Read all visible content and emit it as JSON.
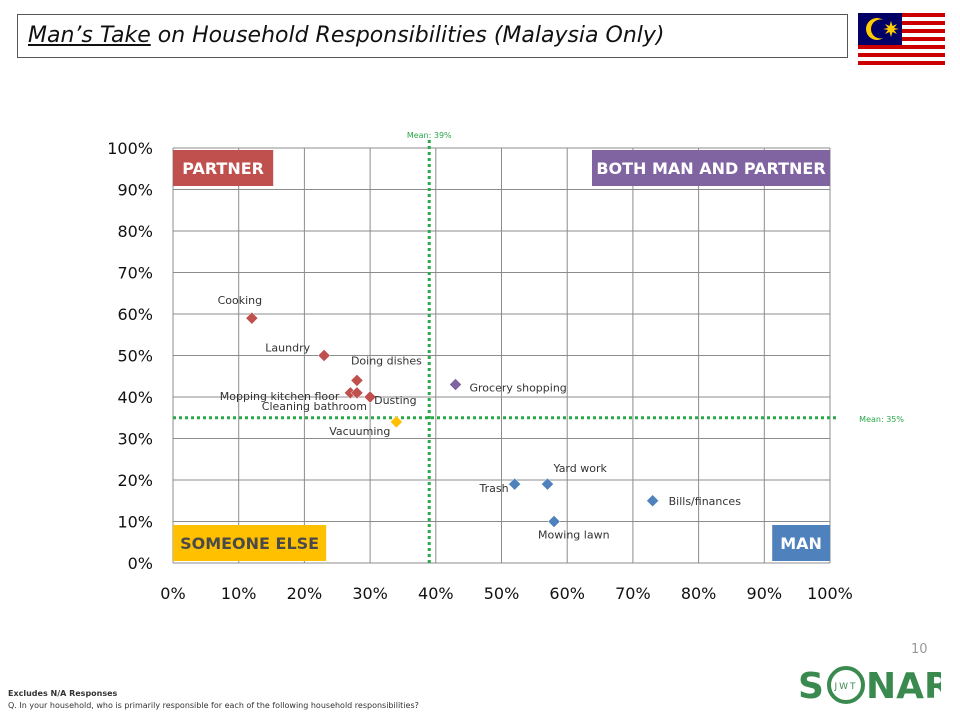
{
  "header": {
    "title_underlined": "Man’s Take",
    "title_rest": " on Household Responsibilities (Malaysia Only)",
    "flag_icon": "malaysia-flag-icon"
  },
  "page_number": "10",
  "footer": {
    "label": "Excludes N/A Responses",
    "question": "Q. In your household, who is primarily responsible for each of the following household responsibilities?"
  },
  "logo": {
    "main": "SONAR",
    "sub": "JWT",
    "color": "#3a8a50"
  },
  "chart_data": {
    "type": "scatter",
    "xlim": [
      0,
      100
    ],
    "ylim": [
      0,
      100
    ],
    "x_ticks": [
      "0%",
      "10%",
      "20%",
      "30%",
      "40%",
      "50%",
      "60%",
      "70%",
      "80%",
      "90%",
      "100%"
    ],
    "y_ticks": [
      "0%",
      "10%",
      "20%",
      "30%",
      "40%",
      "50%",
      "60%",
      "70%",
      "80%",
      "90%",
      "100%"
    ],
    "grid": true,
    "mean_x": {
      "value": 39,
      "label": "Mean: 39%"
    },
    "mean_y": {
      "value": 35,
      "label": "Mean: 35%"
    },
    "mean_color": "#2aa84a",
    "quadrants": [
      {
        "label": "PARTNER",
        "position": "top-left",
        "color": "#c0504d"
      },
      {
        "label": "BOTH MAN AND PARTNER",
        "position": "top-right",
        "color": "#8064a2"
      },
      {
        "label": "SOMEONE ELSE",
        "position": "bottom-left",
        "color": "#ffc000",
        "text_color": "#4a4a4a"
      },
      {
        "label": "MAN",
        "position": "bottom-right",
        "color": "#4f81bd"
      }
    ],
    "points": [
      {
        "label": "Cooking",
        "x": 12,
        "y": 59,
        "color": "#c0504d"
      },
      {
        "label": "Laundry",
        "x": 23,
        "y": 50,
        "color": "#c0504d"
      },
      {
        "label": "Doing dishes",
        "x": 28,
        "y": 44,
        "color": "#c0504d"
      },
      {
        "label": "Mopping kitchen floor",
        "x": 27,
        "y": 41,
        "color": "#c0504d"
      },
      {
        "label": "Cleaning bathroom",
        "x": 28,
        "y": 41,
        "color": "#c0504d"
      },
      {
        "label": "Dusting",
        "x": 30,
        "y": 40,
        "color": "#c0504d"
      },
      {
        "label": "Vacuuming",
        "x": 34,
        "y": 34,
        "color": "#ffc000"
      },
      {
        "label": "Grocery shopping",
        "x": 43,
        "y": 43,
        "color": "#8064a2"
      },
      {
        "label": "Trash",
        "x": 52,
        "y": 19,
        "color": "#4f81bd"
      },
      {
        "label": "Yard work",
        "x": 57,
        "y": 19,
        "color": "#4f81bd"
      },
      {
        "label": "Mowing lawn",
        "x": 58,
        "y": 10,
        "color": "#4f81bd"
      },
      {
        "label": "Bills/finances",
        "x": 73,
        "y": 15,
        "color": "#4f81bd"
      }
    ]
  }
}
